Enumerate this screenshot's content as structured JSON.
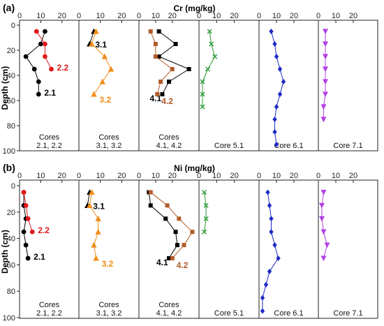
{
  "chart_data": [
    {
      "type": "line",
      "panel_label": "(a)",
      "title": "Cr (mg/kg)",
      "ylabel": "Depth (cm)",
      "ylim": [
        0,
        100
      ],
      "y_inverted": true,
      "yticks": [
        0,
        20,
        40,
        60,
        80,
        100
      ],
      "xticks": [
        0,
        10,
        20
      ],
      "subplots": [
        {
          "name_lines": [
            "Cores",
            "2.1, 2.2"
          ],
          "xlim": [
            0,
            28
          ],
          "series": [
            {
              "name": "2.1",
              "color": "#000000",
              "marker": "circle",
              "points": [
                [
                  12,
                  5
                ],
                [
                  10,
                  15
                ],
                [
                  3,
                  25
                ],
                [
                  7,
                  35
                ],
                [
                  9,
                  45
                ],
                [
                  9,
                  55
                ]
              ]
            },
            {
              "name": "2.2",
              "color": "#e0191a",
              "marker": "circle",
              "points": [
                [
                  8,
                  5
                ],
                [
                  12,
                  15
                ],
                [
                  12,
                  25
                ],
                [
                  15,
                  35
                ]
              ]
            }
          ]
        },
        {
          "name_lines": [
            "Cores",
            "3.1, 3.2"
          ],
          "xlim": [
            0,
            28
          ],
          "series": [
            {
              "name": "3.1",
              "color": "#000000",
              "marker": "triangle",
              "points": [
                [
                  7,
                  5
                ],
                [
                  5,
                  15
                ]
              ]
            },
            {
              "name": "3.2",
              "color": "#f28c17",
              "marker": "triangle",
              "points": [
                [
                  8,
                  5
                ],
                [
                  6,
                  15
                ],
                [
                  12,
                  25
                ],
                [
                  15,
                  35
                ],
                [
                  11,
                  45
                ],
                [
                  7,
                  55
                ]
              ]
            }
          ]
        },
        {
          "name_lines": [
            "Cores",
            "4.1, 4.2"
          ],
          "xlim": [
            0,
            36
          ],
          "series": [
            {
              "name": "4.1",
              "color": "#000000",
              "marker": "square",
              "points": [
                [
                  12,
                  5
                ],
                [
                  22,
                  15
                ],
                [
                  12,
                  25
                ],
                [
                  30,
                  35
                ],
                [
                  18,
                  45
                ],
                [
                  14,
                  55
                ]
              ]
            },
            {
              "name": "4.2",
              "color": "#b25a28",
              "marker": "square",
              "points": [
                [
                  7,
                  5
                ],
                [
                  10,
                  15
                ],
                [
                  10,
                  25
                ],
                [
                  20,
                  35
                ],
                [
                  13,
                  45
                ],
                [
                  11,
                  55
                ]
              ]
            }
          ]
        },
        {
          "name_lines": [
            "Core 5.1"
          ],
          "xlim": [
            0,
            34
          ],
          "series": [
            {
              "name": "Core 5.1",
              "color": "#2a9a35",
              "marker": "x",
              "points": [
                [
                  6,
                  5
                ],
                [
                  7,
                  15
                ],
                [
                  9,
                  25
                ],
                [
                  5,
                  35
                ],
                [
                  2,
                  45
                ],
                [
                  2,
                  55
                ],
                [
                  2,
                  65
                ]
              ]
            }
          ]
        },
        {
          "name_lines": [
            "Core 6.1"
          ],
          "xlim": [
            0,
            34
          ],
          "series": [
            {
              "name": "Core 6.1",
              "color": "#1e2bc4",
              "marker": "diamond",
              "points": [
                [
                  7,
                  5
                ],
                [
                  9,
                  15
                ],
                [
                  10,
                  25
                ],
                [
                  12,
                  35
                ],
                [
                  14,
                  45
                ],
                [
                  12,
                  55
                ],
                [
                  10,
                  65
                ],
                [
                  9,
                  75
                ],
                [
                  9,
                  85
                ],
                [
                  10,
                  95
                ]
              ]
            }
          ]
        },
        {
          "name_lines": [
            "Core 7.1"
          ],
          "xlim": [
            0,
            34
          ],
          "series": [
            {
              "name": "Core 7.1",
              "color": "#b140e6",
              "marker": "triangle-down",
              "points": [
                [
                  4,
                  5
                ],
                [
                  4,
                  15
                ],
                [
                  4,
                  25
                ],
                [
                  4,
                  35
                ],
                [
                  4,
                  45
                ],
                [
                  4,
                  55
                ],
                [
                  3,
                  65
                ],
                [
                  3,
                  75
                ]
              ]
            }
          ]
        }
      ]
    },
    {
      "type": "line",
      "panel_label": "(b)",
      "title": "Ni (mg/kg)",
      "ylabel": "Depth (cm)",
      "ylim": [
        0,
        100
      ],
      "y_inverted": true,
      "yticks": [
        0,
        20,
        40,
        60,
        80,
        100
      ],
      "xticks": [
        0,
        10,
        20
      ],
      "subplots": [
        {
          "name_lines": [
            "Cores",
            "2.1, 2.2"
          ],
          "xlim": [
            0,
            28
          ],
          "series": [
            {
              "name": "2.1",
              "color": "#000000",
              "marker": "circle",
              "points": [
                [
                  2,
                  5
                ],
                [
                  2,
                  15
                ],
                [
                  3,
                  25
                ],
                [
                  2,
                  35
                ],
                [
                  3,
                  45
                ],
                [
                  4,
                  55
                ]
              ]
            },
            {
              "name": "2.2",
              "color": "#e0191a",
              "marker": "circle",
              "points": [
                [
                  2,
                  5
                ],
                [
                  3,
                  15
                ],
                [
                  4,
                  25
                ],
                [
                  6,
                  35
                ]
              ]
            }
          ]
        },
        {
          "name_lines": [
            "Cores",
            "3.1, 3.2"
          ],
          "xlim": [
            0,
            28
          ],
          "series": [
            {
              "name": "3.1",
              "color": "#000000",
              "marker": "triangle",
              "points": [
                [
                  5,
                  5
                ],
                [
                  4,
                  15
                ]
              ]
            },
            {
              "name": "3.2",
              "color": "#f28c17",
              "marker": "triangle",
              "points": [
                [
                  6,
                  5
                ],
                [
                  5,
                  15
                ],
                [
                  9,
                  25
                ],
                [
                  9,
                  35
                ],
                [
                  7,
                  45
                ],
                [
                  8,
                  55
                ]
              ]
            }
          ]
        },
        {
          "name_lines": [
            "Cores",
            "4.1, 4.2"
          ],
          "xlim": [
            0,
            36
          ],
          "series": [
            {
              "name": "4.1",
              "color": "#000000",
              "marker": "square",
              "points": [
                [
                  6,
                  5
                ],
                [
                  7,
                  15
                ],
                [
                  16,
                  25
                ],
                [
                  22,
                  35
                ],
                [
                  23,
                  45
                ],
                [
                  18,
                  55
                ]
              ]
            },
            {
              "name": "4.2",
              "color": "#b25a28",
              "marker": "square",
              "points": [
                [
                  7,
                  5
                ],
                [
                  17,
                  15
                ],
                [
                  24,
                  25
                ],
                [
                  32,
                  35
                ],
                [
                  27,
                  45
                ],
                [
                  20,
                  55
                ]
              ]
            }
          ]
        },
        {
          "name_lines": [
            "Core 5.1"
          ],
          "xlim": [
            0,
            34
          ],
          "series": [
            {
              "name": "Core 5.1",
              "color": "#2a9a35",
              "marker": "x",
              "points": [
                [
                  3,
                  5
                ],
                [
                  4,
                  15
                ],
                [
                  4,
                  25
                ],
                [
                  3,
                  35
                ]
              ]
            }
          ]
        },
        {
          "name_lines": [
            "Core 6.1"
          ],
          "xlim": [
            0,
            34
          ],
          "series": [
            {
              "name": "Core 6.1",
              "color": "#1e2bc4",
              "marker": "diamond",
              "points": [
                [
                  5,
                  5
                ],
                [
                  6,
                  15
                ],
                [
                  7,
                  25
                ],
                [
                  7,
                  35
                ],
                [
                  9,
                  45
                ],
                [
                  11,
                  55
                ],
                [
                  6,
                  65
                ],
                [
                  4,
                  75
                ],
                [
                  2,
                  85
                ],
                [
                  2,
                  95
                ]
              ]
            }
          ]
        },
        {
          "name_lines": [
            "Core 7.1"
          ],
          "xlim": [
            0,
            34
          ],
          "series": [
            {
              "name": "Core 7.1",
              "color": "#b140e6",
              "marker": "triangle-down",
              "points": [
                [
                  3,
                  5
                ],
                [
                  2,
                  15
                ],
                [
                  2,
                  25
                ],
                [
                  3,
                  35
                ],
                [
                  5,
                  45
                ],
                [
                  3,
                  55
                ]
              ]
            }
          ]
        }
      ]
    }
  ]
}
